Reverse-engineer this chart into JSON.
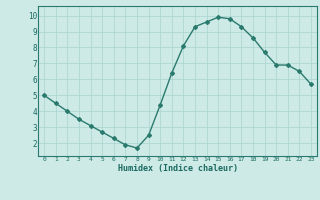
{
  "x": [
    0,
    1,
    2,
    3,
    4,
    5,
    6,
    7,
    8,
    9,
    10,
    11,
    12,
    13,
    14,
    15,
    16,
    17,
    18,
    19,
    20,
    21,
    22,
    23
  ],
  "y": [
    5.0,
    4.5,
    4.0,
    3.5,
    3.1,
    2.7,
    2.3,
    1.9,
    1.7,
    2.5,
    4.4,
    6.4,
    8.1,
    9.3,
    9.6,
    9.9,
    9.8,
    9.3,
    8.6,
    7.7,
    6.9,
    6.9,
    6.5,
    5.7
  ],
  "line_color": "#2a7a6e",
  "marker": "D",
  "markersize": 2.0,
  "linewidth": 1.0,
  "bg_color": "#cdeae7",
  "grid_color": "#aad4d0",
  "xlabel": "Humidex (Indice chaleur)",
  "xlabel_color": "#1a6a60",
  "tick_color": "#1a6a60",
  "spine_color": "#2a7a6e",
  "xlim": [
    -0.5,
    23.5
  ],
  "ylim": [
    1.2,
    10.6
  ],
  "yticks": [
    2,
    3,
    4,
    5,
    6,
    7,
    8,
    9,
    10
  ],
  "xticks": [
    0,
    1,
    2,
    3,
    4,
    5,
    6,
    7,
    8,
    9,
    10,
    11,
    12,
    13,
    14,
    15,
    16,
    17,
    18,
    19,
    20,
    21,
    22,
    23
  ],
  "xtick_labels": [
    "0",
    "1",
    "2",
    "3",
    "4",
    "5",
    "6",
    "7",
    "8",
    "9",
    "10",
    "11",
    "12",
    "13",
    "14",
    "15",
    "16",
    "17",
    "18",
    "19",
    "20",
    "21",
    "22",
    "23"
  ]
}
